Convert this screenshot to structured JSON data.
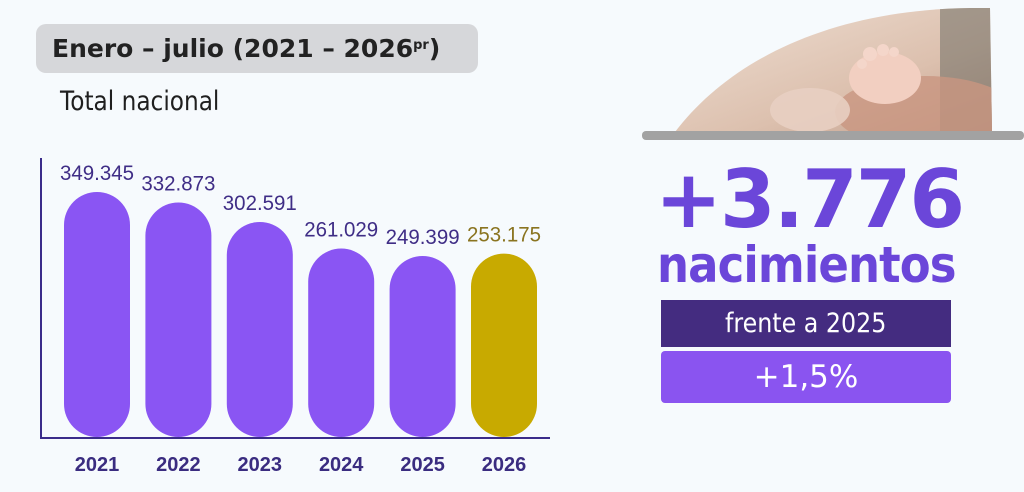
{
  "header": {
    "title": "Enero – julio (2021 – 2026",
    "title_sup": "pr",
    "title_close": ")",
    "subtitle": "Total nacional"
  },
  "chart_data": {
    "type": "bar",
    "categories": [
      "2021",
      "2022",
      "2023",
      "2024",
      "2025",
      "2026"
    ],
    "values": [
      349345,
      332873,
      302591,
      261029,
      249399,
      253175
    ],
    "value_labels": [
      "349.345",
      "332.873",
      "302.591",
      "261.029",
      "249.399",
      "253.175"
    ],
    "colors": [
      "#8a55f3",
      "#8a55f3",
      "#8a55f3",
      "#8a55f3",
      "#8a55f3",
      "#c8aa00"
    ],
    "label_colors": [
      "#3f2d86",
      "#3f2d86",
      "#3f2d86",
      "#3f2d86",
      "#3f2d86",
      "#8a7420"
    ],
    "grid": false
  },
  "highlight": {
    "number": "+3.776",
    "word": "nacimientos",
    "comparison": "frente a 2025",
    "percent": "+1,5%"
  },
  "colors": {
    "accent": "#6b46d9",
    "dark_box": "#442c80",
    "light_box": "#8a54f0",
    "bar": "#8a55f3",
    "highlight_bar": "#c8aa00"
  }
}
